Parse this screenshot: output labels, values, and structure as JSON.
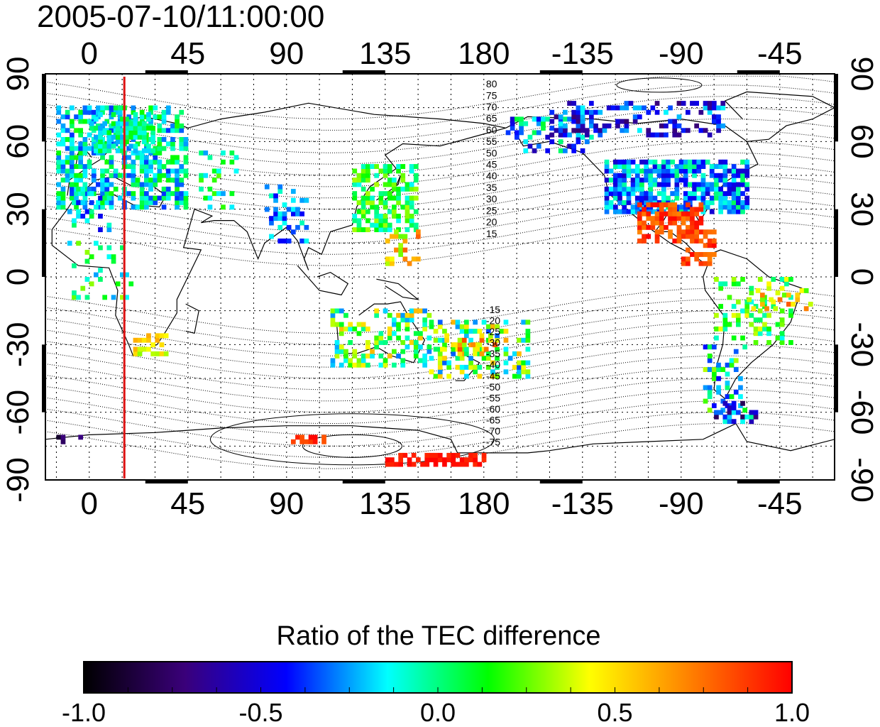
{
  "title": "2005-07-10/11:00:00",
  "map": {
    "lon_ticks_top": [
      "0",
      "45",
      "90",
      "135",
      "180",
      "-135",
      "-90",
      "-45"
    ],
    "lon_ticks_bottom": [
      "0",
      "45",
      "90",
      "135",
      "180",
      "-135",
      "-90",
      "-45"
    ],
    "lat_ticks_left": [
      "90",
      "60",
      "30",
      "0",
      "-30",
      "-60",
      "-90"
    ],
    "lat_ticks_right": [
      "90",
      "60",
      "30",
      "0",
      "-30",
      "-60",
      "-90"
    ],
    "lon_range": [
      -20,
      340
    ],
    "lat_range": [
      -90,
      90
    ],
    "meridian_line_lon": 16,
    "meridian_line_color": "#dd1111",
    "mlat_labels_north": [
      "80",
      "75",
      "70",
      "65",
      "60",
      "55",
      "50",
      "45",
      "40",
      "35",
      "30",
      "25",
      "20",
      "15"
    ],
    "mlat_labels_south": [
      "-15",
      "-20",
      "-25",
      "-30",
      "-35",
      "-40",
      "-45",
      "-50",
      "-55",
      "-60",
      "-65",
      "-70",
      "-75"
    ]
  },
  "colorbar": {
    "title": "Ratio of the TEC difference",
    "tick_labels": [
      "-1.0",
      "-0.5",
      "0.0",
      "0.5",
      "1.0"
    ],
    "range": [
      -1.0,
      1.0
    ],
    "colors": [
      "#000000",
      "#3a007a",
      "#0000ff",
      "#00ffff",
      "#00ff00",
      "#ffff00",
      "#ff7f00",
      "#ff0000"
    ]
  }
}
